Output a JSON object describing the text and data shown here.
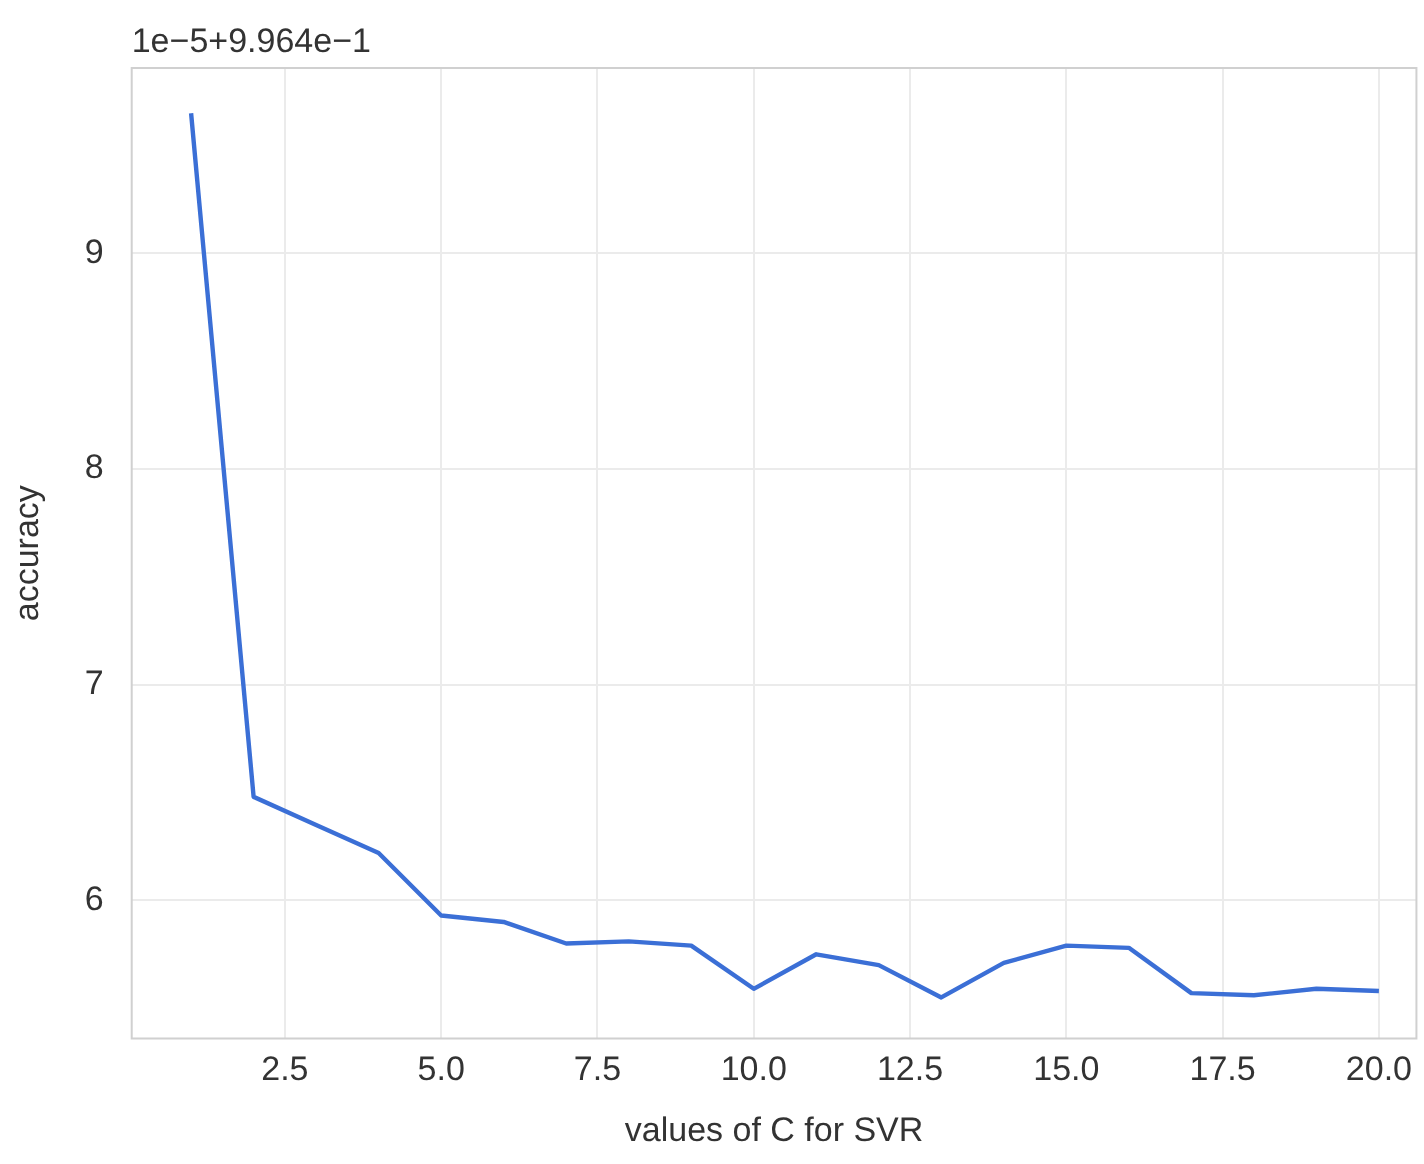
{
  "chart_data": {
    "type": "line",
    "xlabel": "values of C for SVR",
    "ylabel": "accuracy",
    "annotations": [
      "1e−5+9.964e−1"
    ],
    "x": [
      1,
      2,
      3,
      4,
      5,
      6,
      7,
      8,
      9,
      10,
      11,
      12,
      13,
      14,
      15,
      16,
      17,
      18,
      19,
      20
    ],
    "series": [
      {
        "color": "#3b6fd6",
        "values": [
          9.65,
          6.48,
          6.35,
          6.22,
          5.93,
          5.9,
          5.8,
          5.81,
          5.79,
          5.59,
          5.75,
          5.7,
          5.55,
          5.71,
          5.79,
          5.78,
          5.57,
          5.56,
          5.59,
          5.58
        ]
      }
    ],
    "xlim": [
      0.05,
      20.6
    ],
    "xticks": [
      {
        "value": 2.5,
        "label": "2.5"
      },
      {
        "value": 5,
        "label": "5.0"
      },
      {
        "value": 7.5,
        "label": "7.5"
      },
      {
        "value": 10,
        "label": "10.0"
      },
      {
        "value": 12.5,
        "label": "12.5"
      },
      {
        "value": 15,
        "label": "15.0"
      },
      {
        "value": 17.5,
        "label": "17.5"
      },
      {
        "value": 20,
        "label": "20.0"
      }
    ],
    "ylim": [
      5.36,
      9.86
    ],
    "yticks": [
      6,
      7,
      8,
      9
    ],
    "grid": true,
    "legend": false,
    "marker": "none",
    "line_style": "solid"
  }
}
